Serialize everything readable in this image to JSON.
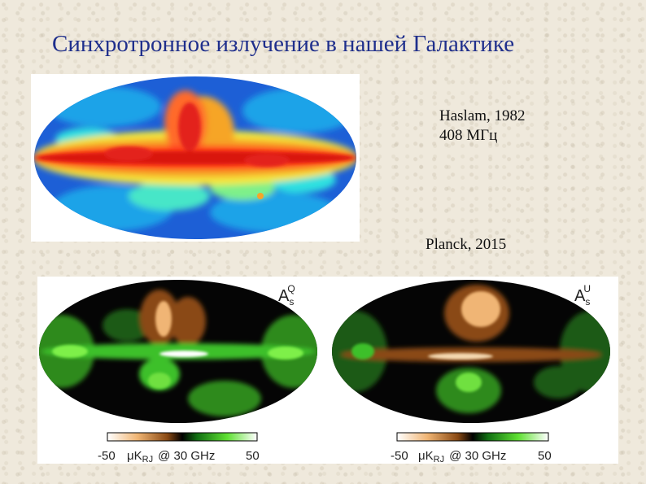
{
  "slide": {
    "title": "Синхротронное излучение в нашей Галактике"
  },
  "haslam_map": {
    "caption_line1": "Haslam, 1982",
    "caption_line2": "408 МГц"
  },
  "planck_map": {
    "caption": "Planck, 2015",
    "left_map_label": "A",
    "left_map_sub": "s",
    "left_map_sup": "Q",
    "right_map_label": "A",
    "right_map_sub": "s",
    "right_map_sup": "U",
    "scale_min": "-50",
    "scale_max": "50",
    "scale_unit_mu": "μK",
    "scale_unit_sub": "RJ",
    "scale_unit_rest": "@ 30 GHz"
  }
}
